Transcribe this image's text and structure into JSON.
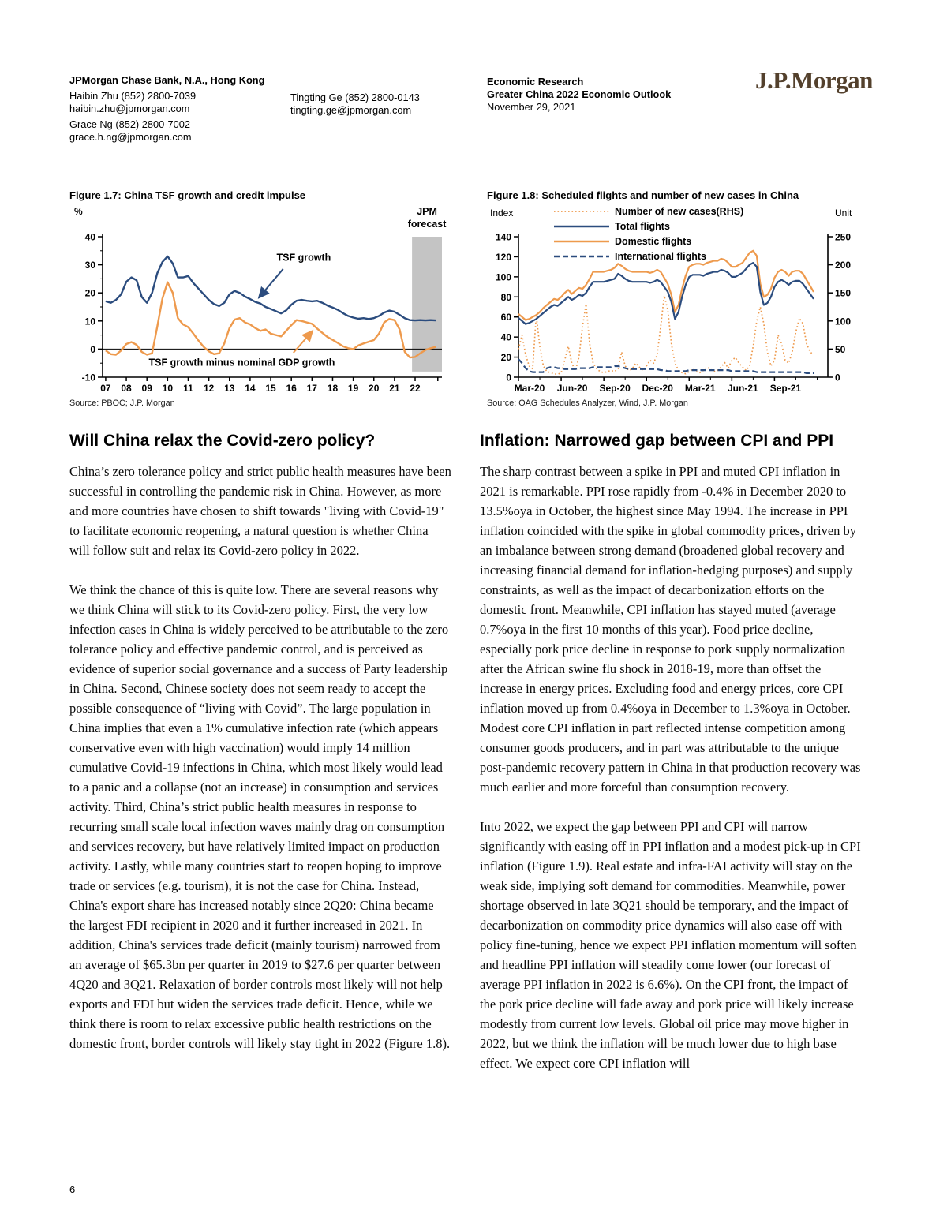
{
  "header": {
    "office": "JPMorgan Chase Bank, N.A., Hong Kong",
    "analysts": [
      {
        "name_phone": "Haibin Zhu (852) 2800-7039",
        "email": "haibin.zhu@jpmorgan.com"
      },
      {
        "name_phone": "Grace Ng (852) 2800-7002",
        "email": "grace.h.ng@jpmorgan.com"
      },
      {
        "name_phone": "Tingting Ge (852) 2800-0143",
        "email": "tingting.ge@jpmorgan.com"
      }
    ],
    "section": "Economic Research",
    "report_title": "Greater China 2022 Economic Outlook",
    "date": "November 29, 2021",
    "logo": "J.P.Morgan"
  },
  "chart_data": [
    {
      "type": "line",
      "title": "Figure 1.7: China TSF growth and credit impulse",
      "y_axis_label": "%",
      "ylim": [
        -10,
        40
      ],
      "y_ticks": [
        40,
        30,
        20,
        10,
        0,
        -10
      ],
      "x_tick_labels": [
        "07",
        "08",
        "09",
        "10",
        "11",
        "12",
        "13",
        "14",
        "15",
        "16",
        "17",
        "18",
        "19",
        "20",
        "21",
        "22"
      ],
      "x_start": 2007,
      "x_step": 0.25,
      "forecast_band": [
        2021.85,
        2023.3
      ],
      "forecast_label": [
        "JPM",
        "forecast"
      ],
      "series": [
        {
          "name": "TSF growth",
          "color": "#2b4c7e",
          "values": [
            17,
            16.5,
            17.5,
            19.5,
            24,
            25.5,
            24.5,
            18.5,
            16.5,
            20,
            27,
            31,
            33,
            30.5,
            25.5,
            25.5,
            26,
            23.5,
            21.5,
            19.5,
            17.5,
            16,
            15.3,
            16.5,
            19.5,
            20.7,
            20,
            18.7,
            17.8,
            16.8,
            16.2,
            15,
            14.3,
            13.5,
            12.7,
            13.8,
            15.8,
            17.2,
            17.5,
            17.2,
            17,
            17.2,
            16.5,
            15.5,
            14.8,
            14,
            12.8,
            11.8,
            11.2,
            10.8,
            11,
            10.7,
            11,
            11.8,
            13,
            13.7,
            13.3,
            12.2,
            11,
            10.3,
            10.2,
            10.3,
            10.2,
            10.3,
            10.2
          ]
        },
        {
          "name": "TSF growth minus nominal GDP growth",
          "color": "#ee9a4d",
          "values": [
            -0.5,
            -1.8,
            -2,
            -0.5,
            1.8,
            2.5,
            1.5,
            -1,
            -2,
            -1.5,
            8,
            18,
            23.8,
            20,
            11,
            8.8,
            7.8,
            5.5,
            3,
            0.8,
            -0.8,
            -1.8,
            -1.5,
            2,
            7.5,
            10.5,
            11,
            9.5,
            8.8,
            7.5,
            6.5,
            7,
            5.5,
            5,
            4.5,
            6.5,
            8.5,
            10.3,
            10,
            9.5,
            9,
            7.3,
            5.8,
            4.3,
            3.3,
            2.2,
            1,
            0.3,
            0,
            1.3,
            2,
            2.6,
            3.2,
            5.5,
            9.5,
            10.7,
            10.3,
            7,
            -1,
            -3,
            -2.8,
            -1.5,
            -0.3,
            0.3,
            0.8
          ]
        }
      ],
      "source": "Source: PBOC; J.P. Morgan"
    },
    {
      "type": "line",
      "title": "Figure 1.8: Scheduled flights and number of new cases in China",
      "left_axis_label": "Index",
      "right_axis_label": "Unit",
      "left_ylim": [
        0,
        140
      ],
      "right_ylim": [
        0,
        250
      ],
      "left_y_ticks": [
        0,
        20,
        40,
        60,
        80,
        100,
        120,
        140
      ],
      "right_y_ticks": [
        0,
        50,
        100,
        150,
        200,
        250
      ],
      "x_tick_labels": [
        "Mar-20",
        "Jun-20",
        "Sep-20",
        "Dec-20",
        "Mar-21",
        "Jun-21",
        "Sep-21"
      ],
      "x_tick_positions": [
        0,
        12,
        24,
        36,
        48,
        60,
        72
      ],
      "points_per_series": 84,
      "series": [
        {
          "name": "Number of new cases(RHS)",
          "axis": "right",
          "style": "dotted",
          "color": "#ee9a4d",
          "values": [
            50,
            75,
            40,
            20,
            15,
            110,
            55,
            20,
            10,
            8,
            6,
            5,
            8,
            30,
            55,
            25,
            12,
            35,
            90,
            130,
            60,
            25,
            15,
            10,
            8,
            10,
            12,
            10,
            15,
            45,
            20,
            12,
            15,
            25,
            18,
            12,
            20,
            30,
            25,
            40,
            90,
            145,
            120,
            60,
            25,
            12,
            8,
            6,
            10,
            15,
            10,
            8,
            12,
            18,
            14,
            10,
            12,
            18,
            26,
            16,
            30,
            35,
            25,
            18,
            12,
            20,
            55,
            100,
            125,
            95,
            45,
            20,
            30,
            75,
            60,
            30,
            25,
            45,
            80,
            105,
            95,
            60,
            45,
            40
          ]
        },
        {
          "name": "Total flights",
          "axis": "left",
          "style": "solid",
          "color": "#2b4c7e",
          "values": [
            59,
            56,
            53,
            54,
            56,
            58,
            61,
            64,
            67,
            70,
            72,
            71,
            74,
            77,
            80,
            77,
            79,
            82,
            81,
            84,
            90,
            95,
            95,
            95,
            95,
            96,
            97,
            98,
            103,
            101,
            98,
            96,
            95,
            95,
            95,
            95,
            95,
            94,
            95,
            97,
            95,
            90,
            85,
            75,
            58,
            65,
            80,
            92,
            100,
            102,
            102,
            102,
            101,
            103,
            104,
            105,
            105,
            107,
            106,
            104,
            100,
            100,
            102,
            104,
            108,
            112,
            114,
            110,
            85,
            72,
            74,
            80,
            90,
            95,
            97,
            95,
            92,
            95,
            96,
            96,
            93,
            88,
            83,
            78
          ]
        },
        {
          "name": "Domestic flights",
          "axis": "left",
          "style": "solid",
          "color": "#ee9a4d",
          "values": [
            63,
            60,
            57,
            58,
            60,
            62,
            65,
            69,
            72,
            75,
            78,
            77,
            80,
            84,
            87,
            83,
            86,
            89,
            88,
            92,
            98,
            105,
            105,
            105,
            105,
            106,
            107,
            109,
            113,
            111,
            108,
            106,
            105,
            105,
            105,
            105,
            105,
            104,
            105,
            107,
            105,
            99,
            93,
            82,
            65,
            72,
            88,
            101,
            110,
            112,
            113,
            113,
            112,
            114,
            115,
            116,
            116,
            118,
            117,
            114,
            110,
            110,
            112,
            114,
            119,
            124,
            126,
            121,
            93,
            80,
            82,
            88,
            99,
            105,
            107,
            105,
            101,
            105,
            106,
            106,
            103,
            97,
            91,
            85
          ]
        },
        {
          "name": "International flights",
          "axis": "left",
          "style": "dashed",
          "color": "#2b4c7e",
          "values": [
            18,
            14,
            9,
            6,
            5,
            5,
            5,
            5,
            9,
            10,
            10,
            9,
            9,
            8,
            8,
            8,
            8,
            9,
            9,
            9,
            9,
            10,
            10,
            10,
            10,
            10,
            10,
            11,
            11,
            10,
            9,
            8,
            8,
            8,
            8,
            8,
            8,
            8,
            8,
            8,
            7,
            7,
            6,
            6,
            6,
            6,
            6,
            6,
            7,
            7,
            7,
            7,
            7,
            7,
            7,
            7,
            7,
            7,
            7,
            7,
            6,
            6,
            6,
            6,
            6,
            6,
            6,
            5,
            5,
            5,
            5,
            5,
            5,
            5,
            5,
            5,
            5,
            5,
            5,
            5,
            5,
            4,
            4,
            4
          ]
        }
      ],
      "source": "Source: OAG Schedules Analyzer, Wind, J.P. Morgan"
    }
  ],
  "articles": {
    "left": {
      "heading": "Will China relax the Covid-zero policy?",
      "p1": "China’s zero tolerance policy and strict public health measures have been successful in controlling the pandemic risk in China. However, as more and more countries have chosen to shift towards \"living with Covid-19\" to facilitate economic reopening, a natural question is whether China will follow suit and relax its Covid-zero policy in 2022.",
      "p2": "We think the chance of this is quite low. There are several reasons why we think China will stick to its Covid-zero policy. First, the very low infection cases in China is widely perceived to be attributable to the zero tolerance policy and effective pandemic control, and is perceived as evidence of superior social governance and a success of Party leadership in China. Second, Chinese society does not seem ready to accept the possible consequence of “living with Covid”. The large population in China implies that even a 1% cumulative infection rate (which appears conservative even with high vaccination) would imply 14 million cumulative Covid-19 infections in China, which most likely would lead to a panic and a collapse (not an increase) in consumption and services activity. Third, China’s strict public health measures in response to recurring small scale local infection waves mainly drag on consumption and services recovery, but have relatively limited impact on production activity. Lastly, while many countries start to reopen hoping to improve trade or services (e.g. tourism), it is not the case for China. Instead, China's export share has increased notably since 2Q20: China became the largest FDI recipient in 2020 and it further increased in 2021. In addition, China's services trade deficit (mainly tourism) narrowed from an average of $65.3bn per quarter in 2019 to $27.6 per quarter between 4Q20 and 3Q21. Relaxation of border controls most likely will not help exports and FDI but widen the services trade deficit. Hence, while we think there is room to relax excessive public health restrictions on the domestic front, border controls will likely stay tight in 2022 (Figure 1.8)."
    },
    "right": {
      "heading": "Inflation: Narrowed gap between CPI and PPI",
      "p1": "The sharp contrast between a spike in PPI and muted CPI inflation in 2021 is remarkable. PPI rose rapidly from -0.4% in December 2020 to 13.5%oya in October, the highest since May 1994. The increase in PPI inflation coincided with the spike in global commodity prices, driven by an imbalance between strong demand (broadened global recovery and increasing financial demand for inflation-hedging purposes) and supply constraints, as well as the impact of decarbonization efforts on the domestic front. Meanwhile, CPI inflation has stayed muted (average 0.7%oya in the first 10 months of this year). Food price decline, especially pork price decline in response to pork supply normalization after the African swine flu shock in 2018-19, more than offset the increase in energy prices. Excluding food and energy prices, core CPI inflation moved up from 0.4%oya in December to 1.3%oya in October. Modest core CPI inflation in part reflected intense competition among consumer goods producers, and in part was attributable to the unique post-pandemic recovery pattern in China in that production recovery was much earlier and more forceful than consumption recovery.",
      "p2": "Into 2022, we expect the gap between PPI and CPI will narrow significantly with easing off in PPI inflation and a modest pick-up in CPI inflation (Figure 1.9). Real estate and infra-FAI activity will stay on the weak side, implying soft demand for commodities. Meanwhile, power shortage observed in late 3Q21 should be temporary, and the impact of decarbonization on commodity price dynamics will also ease off with policy fine-tuning, hence we expect PPI inflation momentum will soften and headline PPI inflation will steadily come lower (our forecast of average PPI inflation in 2022 is 6.6%). On the CPI front, the impact of the pork price decline will fade away and pork price will likely increase modestly from current low levels. Global oil price may move higher in 2022, but we think the inflation will be much lower due to high base effect. We expect core CPI inflation will"
    }
  },
  "footer": {
    "page_number": "6"
  }
}
